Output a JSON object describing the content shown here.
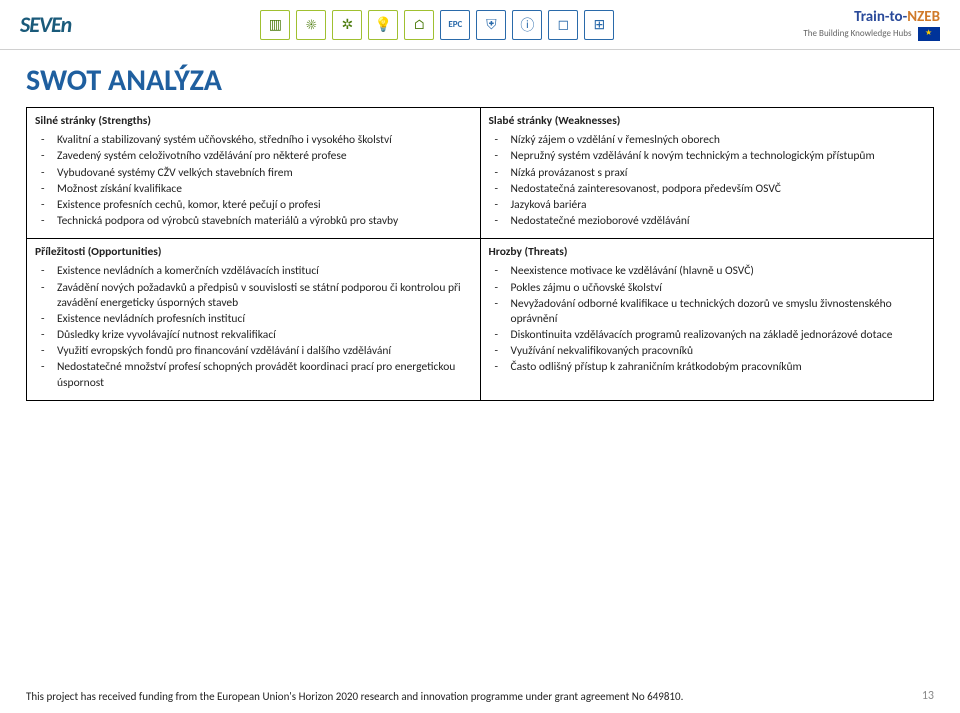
{
  "colors": {
    "title": "#1f5f9f",
    "border": "#000000",
    "text": "#222222",
    "background": "#ffffff",
    "icon_green": "#4a7a0a",
    "icon_blue": "#2a6aaa",
    "logo_left": "#1a5a7a",
    "eu_blue": "#003399",
    "eu_gold": "#ffcc00"
  },
  "typography": {
    "body_font": "Calibri",
    "title_fontsize": 30,
    "cell_fontsize": 11.5,
    "head_weight": "bold"
  },
  "header": {
    "logo_left_text": "SEVEn",
    "icons": [
      "building",
      "sun",
      "wind-turbine",
      "lightbulb",
      "house",
      "epc",
      "shield",
      "info",
      "blank",
      "grid"
    ],
    "logo_right_main": "Train-to-NZEB",
    "logo_right_sub": "The Building Knowledge Hubs"
  },
  "title": "SWOT ANALÝZA",
  "swot": {
    "structure": "2x2 table",
    "cells": [
      {
        "head": "Silné stránky (Strengths)",
        "items": [
          "Kvalitní a stabilizovaný systém učňovského, středního i vysokého školství",
          "Zavedený systém celoživotního vzdělávání pro některé profese",
          "Vybudované systémy CŽV velkých stavebních firem",
          "Možnost získání kvalifikace",
          "Existence profesních cechů, komor, které pečují o profesi",
          "Technická podpora od výrobců stavebních materiálů a výrobků pro stavby"
        ]
      },
      {
        "head": "Slabé stránky (Weaknesses)",
        "items": [
          "Nízký zájem o vzdělání v řemeslných oborech",
          "Nepružný systém vzdělávání k novým technickým a technologickým přístupům",
          "Nízká provázanost s praxí",
          "Nedostatečná zainteresovanost, podpora především OSVČ",
          "Jazyková bariéra",
          "Nedostatečné mezioborové vzdělávání"
        ]
      },
      {
        "head": "Příležitosti (Opportunities)",
        "items": [
          "Existence nevládních a komerčních vzdělávacích institucí",
          "Zavádění nových požadavků a předpisů v souvislosti se státní podporou či kontrolou při zavádění energeticky úsporných staveb",
          "Existence nevládních profesních institucí",
          "Důsledky krize vyvolávající nutnost rekvalifikací",
          "Využití evropských fondů pro financování vzdělávání i dalšího vzdělávání",
          "Nedostatečné množství profesí schopných provádět koordinaci prací pro energetickou úspornost"
        ]
      },
      {
        "head": "Hrozby (Threats)",
        "items": [
          "Neexistence motivace ke vzdělávání (hlavně u OSVČ)",
          "Pokles zájmu o učňovské školství",
          "Nevyžadování odborné kvalifikace u technických dozorů ve smyslu živnostenského oprávnění",
          "Diskontinuita vzdělávacích programů realizovaných na základě jednorázové dotace",
          "Využívání nekvalifikovaných pracovníků",
          "Často odlišný přístup k zahraničním krátkodobým pracovníkům"
        ]
      }
    ]
  },
  "footer": {
    "ack": "This project has received funding from the European Union's Horizon 2020 research and innovation programme under grant agreement No 649810.",
    "page_number": "13"
  }
}
